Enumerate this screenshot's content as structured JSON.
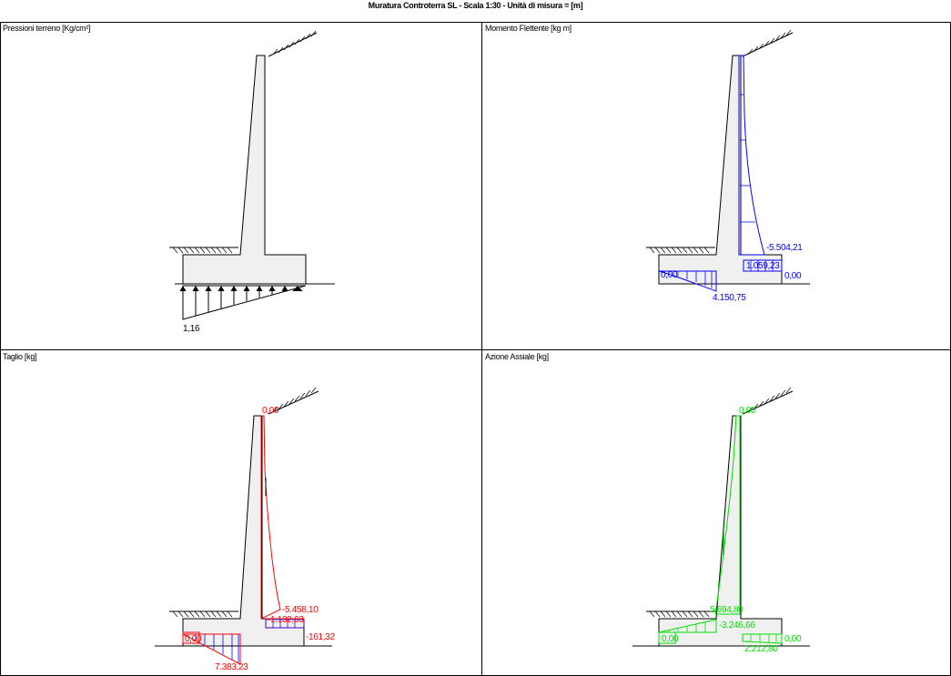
{
  "title": "Muratura Controterra SL - Scala 1:30 - Unità di misura = [m]",
  "panels": {
    "pressioni": {
      "label": "Pressioni terreno [Kg/cm²]",
      "values": {
        "left": "1,16"
      }
    },
    "momento": {
      "label": "Momento Flettente [kg m]",
      "values": {
        "stem_base": "-5.504,21",
        "heel_right": "1.059,23",
        "toe_left": "0,00",
        "heel_end": "0,00",
        "toe_peak": "4.150,75"
      }
    },
    "taglio": {
      "label": "Taglio [kg]",
      "values": {
        "top": "0,00",
        "stem_base": "-5.458,10",
        "heel_mid": "-1.132,63",
        "heel_end": "-161,32",
        "toe_left": "0,00",
        "toe_peak": "7.383,23"
      }
    },
    "assiale": {
      "label": "Azione Assiale [kg]",
      "values": {
        "top": "0,00",
        "stem_base": "5.694,80",
        "toe_right": "-3.246,66",
        "toe_left": "0,00",
        "heel_end": "0,00",
        "heel_peak": "2.212,80"
      }
    }
  },
  "colors": {
    "momento": "#0000ff",
    "taglio": "#ff0000",
    "assiale": "#00e000",
    "wall_fill": "#f0f0f0"
  }
}
